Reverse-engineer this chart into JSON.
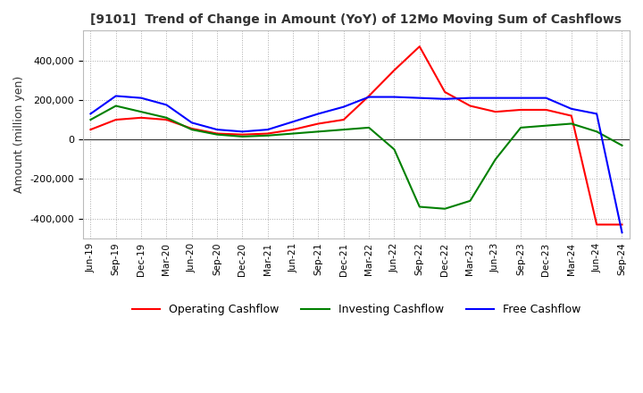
{
  "title": "[9101]  Trend of Change in Amount (YoY) of 12Mo Moving Sum of Cashflows",
  "ylabel": "Amount (million yen)",
  "ylim": [
    -500000,
    550000
  ],
  "yticks": [
    -400000,
    -200000,
    0,
    200000,
    400000
  ],
  "x_labels": [
    "Jun-19",
    "Sep-19",
    "Dec-19",
    "Mar-20",
    "Jun-20",
    "Sep-20",
    "Dec-20",
    "Mar-21",
    "Jun-21",
    "Sep-21",
    "Dec-21",
    "Mar-22",
    "Jun-22",
    "Sep-22",
    "Dec-22",
    "Mar-23",
    "Jun-23",
    "Sep-23",
    "Dec-23",
    "Mar-24",
    "Jun-24",
    "Sep-24"
  ],
  "operating_cashflow": [
    50000,
    100000,
    110000,
    100000,
    55000,
    30000,
    25000,
    30000,
    50000,
    80000,
    100000,
    220000,
    350000,
    470000,
    240000,
    170000,
    140000,
    150000,
    150000,
    120000,
    -430000,
    -430000
  ],
  "investing_cashflow": [
    100000,
    170000,
    140000,
    110000,
    50000,
    25000,
    15000,
    20000,
    30000,
    40000,
    50000,
    60000,
    -50000,
    -340000,
    -350000,
    -310000,
    -100000,
    60000,
    70000,
    80000,
    40000,
    -30000
  ],
  "free_cashflow": [
    130000,
    220000,
    210000,
    175000,
    85000,
    50000,
    40000,
    50000,
    90000,
    130000,
    165000,
    215000,
    215000,
    210000,
    205000,
    210000,
    210000,
    210000,
    210000,
    155000,
    130000,
    -470000
  ],
  "operating_color": "#ff0000",
  "investing_color": "#008000",
  "free_color": "#0000ff",
  "background_color": "#ffffff",
  "grid_color": "#aaaaaa",
  "title_color": "#333333",
  "legend_labels": [
    "Operating Cashflow",
    "Investing Cashflow",
    "Free Cashflow"
  ]
}
